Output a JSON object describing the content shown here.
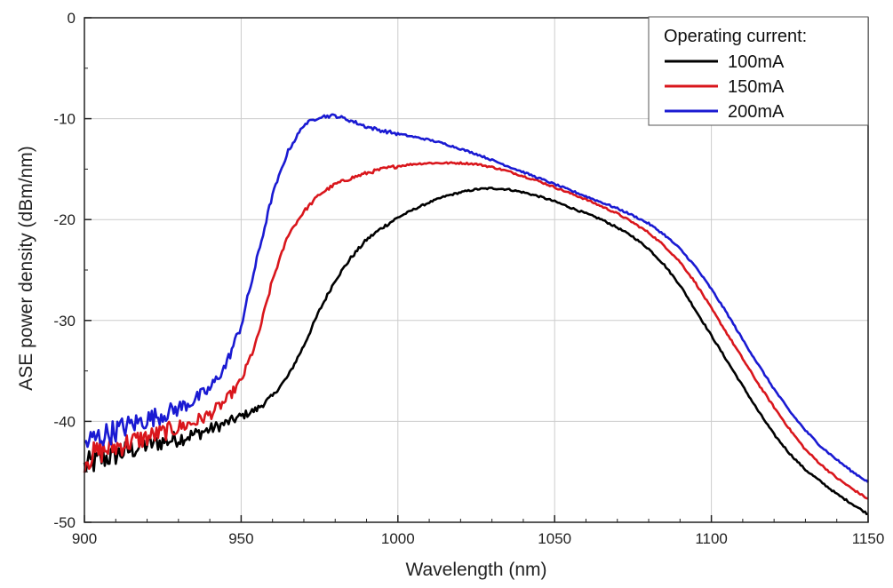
{
  "chart_data": {
    "type": "line",
    "title": "",
    "xlabel": "Wavelength (nm)",
    "ylabel": "ASE power density (dBm/nm)",
    "xlim": [
      900,
      1150
    ],
    "ylim": [
      -50,
      0
    ],
    "xticks": [
      900,
      950,
      1000,
      1050,
      1100,
      1150
    ],
    "yticks": [
      0,
      -10,
      -20,
      -30,
      -40,
      -50
    ],
    "xtick_labels": [
      "900",
      "950",
      "1000",
      "1050",
      "1100",
      "1150"
    ],
    "ytick_labels": [
      "0",
      "-10",
      "-20",
      "-30",
      "-40",
      "-50"
    ],
    "grid": true,
    "legend": {
      "title": "Operating current:",
      "placement": "top-right"
    },
    "series": [
      {
        "name": "100mA",
        "color": "#000000",
        "x": [
          900,
          905,
          910,
          915,
          920,
          925,
          930,
          935,
          940,
          945,
          950,
          955,
          960,
          965,
          970,
          975,
          980,
          985,
          990,
          995,
          1000,
          1005,
          1010,
          1015,
          1020,
          1025,
          1030,
          1035,
          1040,
          1045,
          1050,
          1055,
          1060,
          1065,
          1070,
          1075,
          1080,
          1085,
          1090,
          1095,
          1100,
          1105,
          1110,
          1115,
          1120,
          1125,
          1130,
          1135,
          1140,
          1145,
          1150
        ],
        "y": [
          -44.5,
          -43.8,
          -43.3,
          -42.8,
          -42.3,
          -42.0,
          -41.7,
          -41.3,
          -40.8,
          -40.2,
          -39.5,
          -38.8,
          -37.5,
          -35.5,
          -32.5,
          -29.0,
          -26.0,
          -23.8,
          -22.0,
          -20.8,
          -19.8,
          -19.0,
          -18.3,
          -17.7,
          -17.3,
          -17.0,
          -16.9,
          -17.0,
          -17.3,
          -17.7,
          -18.2,
          -18.8,
          -19.4,
          -20.0,
          -20.8,
          -21.7,
          -22.9,
          -24.5,
          -26.5,
          -29.0,
          -31.5,
          -34.0,
          -36.5,
          -39.0,
          -41.3,
          -43.2,
          -44.8,
          -46.0,
          -47.2,
          -48.2,
          -49.2
        ]
      },
      {
        "name": "150mA",
        "color": "#d9161c",
        "x": [
          900,
          905,
          910,
          915,
          920,
          925,
          930,
          935,
          940,
          945,
          950,
          955,
          960,
          965,
          970,
          975,
          980,
          985,
          990,
          995,
          1000,
          1005,
          1010,
          1015,
          1020,
          1025,
          1030,
          1035,
          1040,
          1045,
          1050,
          1055,
          1060,
          1065,
          1070,
          1075,
          1080,
          1085,
          1090,
          1095,
          1100,
          1105,
          1110,
          1115,
          1120,
          1125,
          1130,
          1135,
          1140,
          1145,
          1150
        ],
        "y": [
          -43.8,
          -43.0,
          -42.5,
          -42.0,
          -41.6,
          -41.1,
          -40.6,
          -40.1,
          -39.3,
          -38.0,
          -36.0,
          -32.0,
          -26.0,
          -21.5,
          -19.2,
          -17.5,
          -16.5,
          -15.9,
          -15.4,
          -15.0,
          -14.7,
          -14.5,
          -14.4,
          -14.4,
          -14.4,
          -14.5,
          -14.8,
          -15.2,
          -15.7,
          -16.2,
          -16.8,
          -17.4,
          -18.0,
          -18.7,
          -19.4,
          -20.3,
          -21.3,
          -22.6,
          -24.2,
          -26.3,
          -28.8,
          -31.3,
          -33.8,
          -36.3,
          -38.6,
          -40.8,
          -42.8,
          -44.3,
          -45.6,
          -46.7,
          -47.7
        ]
      },
      {
        "name": "200mA",
        "color": "#1a1ad2",
        "x": [
          900,
          905,
          910,
          915,
          920,
          925,
          930,
          935,
          940,
          945,
          950,
          955,
          960,
          965,
          970,
          975,
          980,
          985,
          990,
          995,
          1000,
          1005,
          1010,
          1015,
          1020,
          1025,
          1030,
          1035,
          1040,
          1045,
          1050,
          1055,
          1060,
          1065,
          1070,
          1075,
          1080,
          1085,
          1090,
          1095,
          1100,
          1105,
          1110,
          1115,
          1120,
          1125,
          1130,
          1135,
          1140,
          1145,
          1150
        ],
        "y": [
          -42.2,
          -41.5,
          -40.9,
          -40.3,
          -39.8,
          -39.3,
          -38.7,
          -37.9,
          -36.8,
          -34.5,
          -30.5,
          -24.0,
          -17.5,
          -13.2,
          -10.6,
          -9.8,
          -9.7,
          -10.2,
          -10.8,
          -11.2,
          -11.5,
          -11.8,
          -12.1,
          -12.5,
          -13.0,
          -13.5,
          -14.1,
          -14.7,
          -15.3,
          -15.9,
          -16.5,
          -17.1,
          -17.7,
          -18.3,
          -18.9,
          -19.6,
          -20.4,
          -21.5,
          -22.9,
          -24.7,
          -26.9,
          -29.3,
          -31.9,
          -34.4,
          -36.8,
          -39.0,
          -40.9,
          -42.5,
          -43.8,
          -45.0,
          -46.0
        ]
      }
    ]
  }
}
